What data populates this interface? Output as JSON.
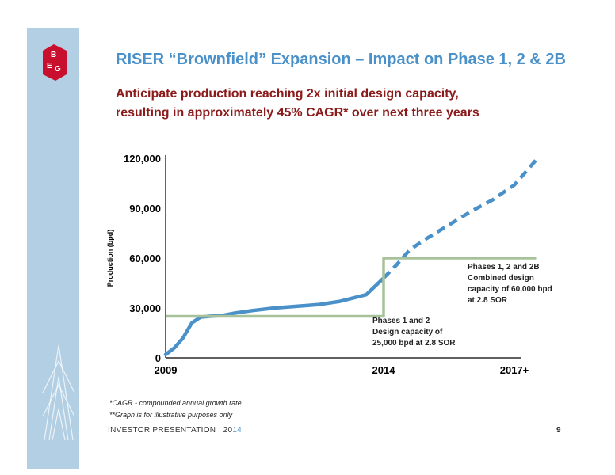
{
  "slide": {
    "title": "RISER “Brownfield” Expansion – Impact on Phase 1, 2 & 2B",
    "subtitle_lines": [
      "Anticipate production reaching 2x initial design capacity,",
      "resulting in approximately 45% CAGR* over next three years"
    ],
    "footnotes": [
      "*CAGR - compounded annual growth rate",
      "**Graph is for illustrative purposes only"
    ],
    "footer_label": "INVESTOR PRESENTATION",
    "footer_year_a": "20",
    "footer_year_b": "14",
    "page_number": "9",
    "logo_text": "BEG"
  },
  "colors": {
    "title": "#4a90c9",
    "subtitle": "#8b1a1a",
    "sidebar": "#b3cfe3",
    "logo": "#c8102e",
    "production_line": "#4a90c9",
    "capacity_line": "#a7c29a"
  },
  "chart_data": {
    "type": "line",
    "title": "",
    "xlabel": "",
    "ylabel": "Production (bpd)",
    "ylim": [
      0,
      120000
    ],
    "xlim": [
      2009,
      2017
    ],
    "yticks": [
      "0",
      "30,000",
      "60,000",
      "90,000",
      "120,000"
    ],
    "ytick_values": [
      0,
      30000,
      60000,
      90000,
      120000
    ],
    "xticks": [
      "2009",
      "2014",
      "2017+"
    ],
    "xtick_values": [
      2009,
      2014,
      2017
    ],
    "series": [
      {
        "name": "",
        "style": "solid",
        "x": [
          2009.0,
          2009.2,
          2009.4,
          2009.6,
          2009.8,
          2010.0,
          2010.3,
          2010.6,
          2011.0,
          2011.5,
          2012.0,
          2012.5,
          2013.0,
          2013.3,
          2013.6,
          2013.8,
          2014.0
        ],
        "y": [
          2000,
          6000,
          12000,
          21000,
          24500,
          25000,
          25500,
          27000,
          28500,
          30000,
          31000,
          32000,
          34000,
          36000,
          38000,
          43000,
          48000
        ]
      },
      {
        "name": "",
        "style": "dashed",
        "x": [
          2014.0,
          2014.3,
          2014.6,
          2015.0,
          2015.5,
          2016.0,
          2016.5,
          2017.0,
          2017.5
        ],
        "y": [
          48000,
          56000,
          65000,
          72000,
          80000,
          88000,
          95000,
          104000,
          119000
        ]
      },
      {
        "name": "",
        "style": "step",
        "x": [
          2009.0,
          2014.0,
          2014.0,
          2017.5
        ],
        "y": [
          25000,
          25000,
          60000,
          60000
        ]
      }
    ],
    "annotations": [
      {
        "id": "phase2b",
        "lines": [
          "Phases 1, 2 and 2B",
          "Combined design",
          "capacity of 60,000 bpd",
          "at 2.8 SOR"
        ]
      },
      {
        "id": "phase12",
        "lines": [
          "Phases 1 and 2",
          "Design capacity of",
          "25,000 bpd at 2.8 SOR"
        ]
      }
    ]
  }
}
